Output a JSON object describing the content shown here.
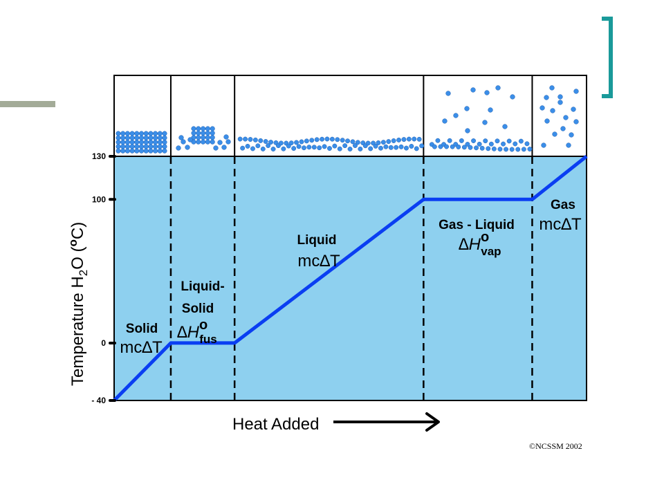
{
  "colors": {
    "plot_bg": "#8ed0ef",
    "curve": "#0a3ef2",
    "molecule": "#3b8ee8",
    "left_bar": "#a3ab98",
    "bracket": "#1a9a9a"
  },
  "chart_data": {
    "type": "line",
    "xlabel": "Heat Added",
    "ylabel_main": "Temperature H",
    "ylabel_sub": "2",
    "ylabel_tail": "O (",
    "ylabel_sup": "o",
    "ylabel_end": "C)",
    "ylim": [
      -40,
      130
    ],
    "xlim": [
      0,
      10
    ],
    "yticks": [
      {
        "value": -40,
        "label": "- 40"
      },
      {
        "value": 0,
        "label": "0"
      },
      {
        "value": 100,
        "label": "100"
      },
      {
        "value": 130,
        "label": "130"
      }
    ],
    "series": [
      {
        "points": [
          [
            0,
            -40
          ],
          [
            1.2,
            0
          ],
          [
            2.55,
            0
          ],
          [
            6.55,
            100
          ],
          [
            8.85,
            100
          ],
          [
            10,
            130
          ]
        ]
      }
    ],
    "phase_boundaries": [
      1.2,
      2.55,
      6.55,
      8.85
    ],
    "regions": [
      {
        "label": "Solid",
        "formula": "mc∆T"
      },
      {
        "label1": "Liquid-",
        "label2": "Solid",
        "formula": "∆H",
        "sup": "o",
        "sub": "fus"
      },
      {
        "label": "Liquid",
        "formula": "mc∆T"
      },
      {
        "label": "Gas - Liquid",
        "formula": "∆H",
        "sup": "o",
        "sub": "vap"
      },
      {
        "label": "Gas",
        "formula": "mc∆T"
      }
    ],
    "grid": false
  },
  "copyright": "©NCSSM 2002"
}
